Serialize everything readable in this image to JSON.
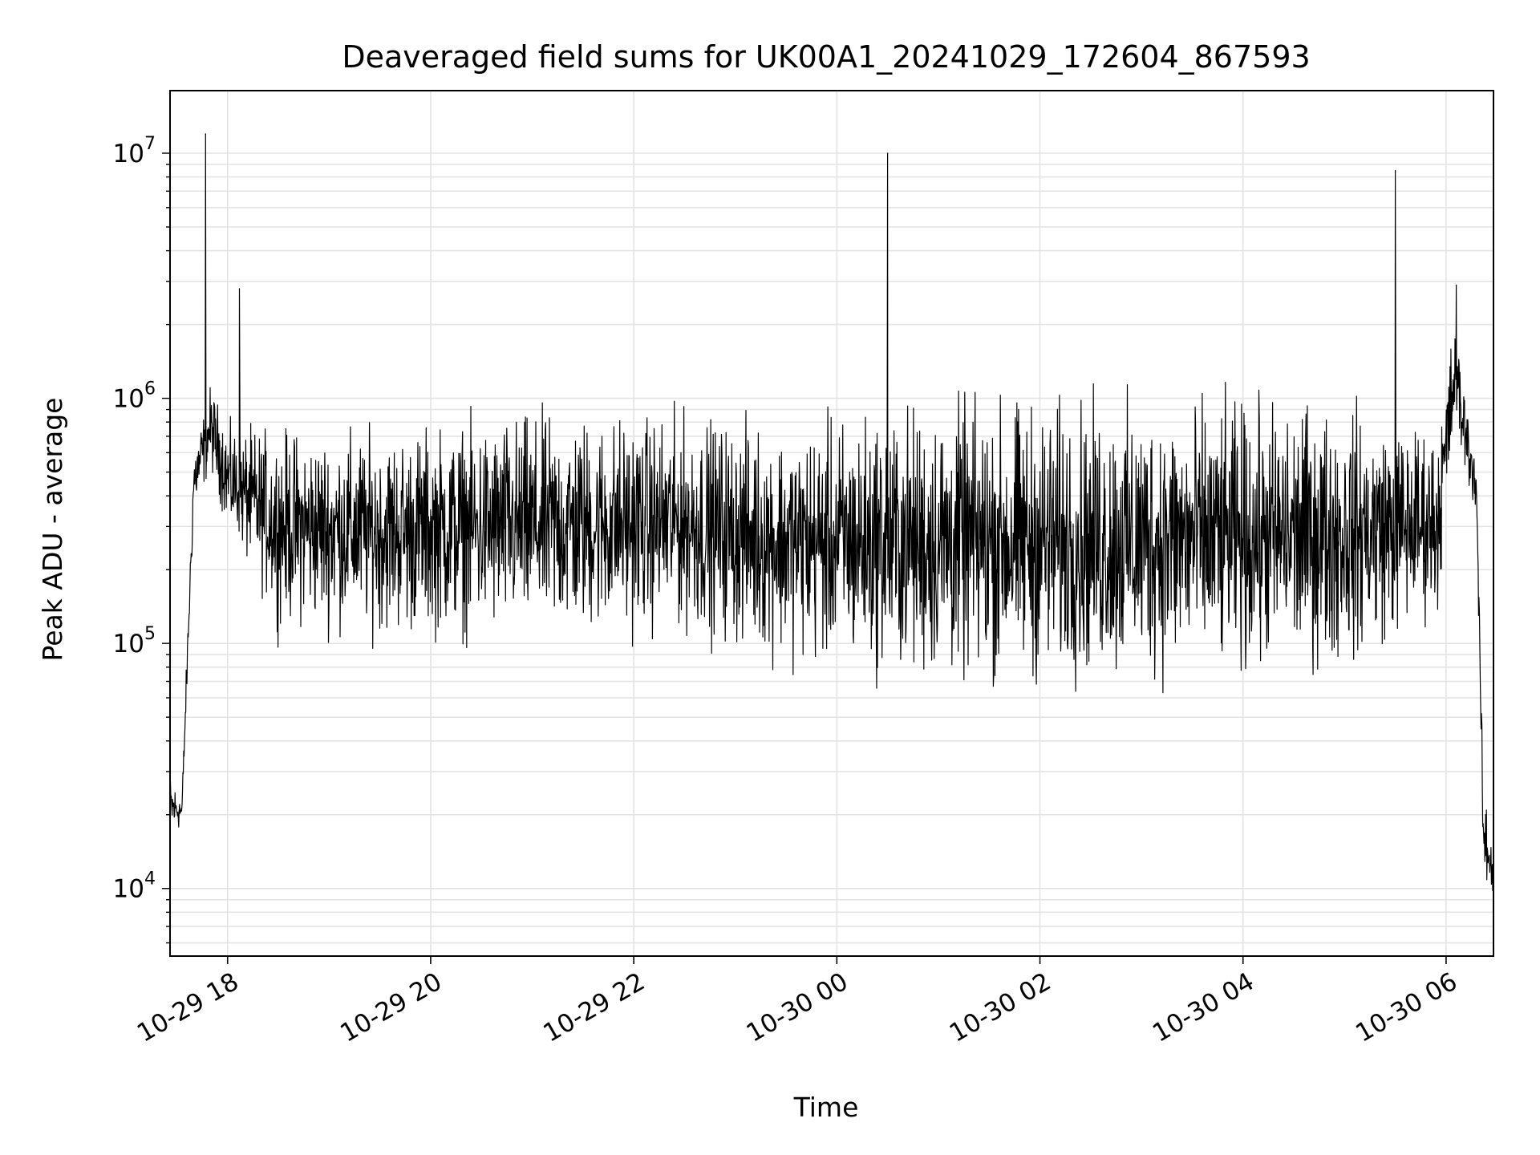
{
  "chart_data": {
    "type": "line",
    "title": "Deaveraged field sums for UK00A1_20241029_172604_867593",
    "xlabel": "Time",
    "ylabel": "Peak ADU - average",
    "yscale": "log",
    "ylim": [
      5300,
      18000000
    ],
    "xlim": [
      "2024-10-29 17:26",
      "2024-10-30 06:28"
    ],
    "grid": true,
    "legend": "none",
    "line_color": "#000000",
    "x_ticks": [
      {
        "label": "10-29 18",
        "time": "2024-10-29 18:00"
      },
      {
        "label": "10-29 20",
        "time": "2024-10-29 20:00"
      },
      {
        "label": "10-29 22",
        "time": "2024-10-29 22:00"
      },
      {
        "label": "10-30 00",
        "time": "2024-10-30 00:00"
      },
      {
        "label": "10-30 02",
        "time": "2024-10-30 02:00"
      },
      {
        "label": "10-30 04",
        "time": "2024-10-30 04:00"
      },
      {
        "label": "10-30 06",
        "time": "2024-10-30 06:00"
      }
    ],
    "y_ticks": [
      {
        "base": "10",
        "exp": "4",
        "value": 10000
      },
      {
        "base": "10",
        "exp": "5",
        "value": 100000
      },
      {
        "base": "10",
        "exp": "6",
        "value": 1000000
      },
      {
        "base": "10",
        "exp": "7",
        "value": 10000000
      }
    ],
    "envelope": {
      "description_points": [
        {
          "time": "2024-10-29 17:26",
          "low": 14000,
          "high": 33000
        },
        {
          "time": "2024-10-29 17:33",
          "low": 17000,
          "high": 25000
        },
        {
          "time": "2024-10-29 17:40",
          "low": 300000,
          "high": 700000
        },
        {
          "time": "2024-10-29 17:50",
          "low": 450000,
          "high": 1300000
        },
        {
          "time": "2024-10-29 18:00",
          "low": 250000,
          "high": 900000
        },
        {
          "time": "2024-10-29 18:30",
          "low": 90000,
          "high": 1000000
        },
        {
          "time": "2024-10-29 19:30",
          "low": 80000,
          "high": 1000000
        },
        {
          "time": "2024-10-29 21:00",
          "low": 75000,
          "high": 1200000
        },
        {
          "time": "2024-10-29 22:30",
          "low": 80000,
          "high": 1200000
        },
        {
          "time": "2024-10-29 23:30",
          "low": 60000,
          "high": 1100000
        },
        {
          "time": "2024-10-30 01:00",
          "low": 45000,
          "high": 1500000
        },
        {
          "time": "2024-10-30 03:00",
          "low": 45000,
          "high": 1500000
        },
        {
          "time": "2024-10-30 05:00",
          "low": 55000,
          "high": 1400000
        },
        {
          "time": "2024-10-30 05:55",
          "low": 100000,
          "high": 1000000
        },
        {
          "time": "2024-10-30 06:05",
          "low": 600000,
          "high": 2500000
        },
        {
          "time": "2024-10-30 06:18",
          "low": 300000,
          "high": 600000
        },
        {
          "time": "2024-10-30 06:22",
          "low": 10000,
          "high": 26000
        },
        {
          "time": "2024-10-30 06:28",
          "low": 7500,
          "high": 18000
        }
      ]
    },
    "spikes": [
      {
        "time": "2024-10-29 17:47",
        "value": 12000000
      },
      {
        "time": "2024-10-29 18:07",
        "value": 2800000
      },
      {
        "time": "2024-10-30 00:30",
        "value": 10000000
      },
      {
        "time": "2024-10-30 05:30",
        "value": 8500000
      },
      {
        "time": "2024-10-30 06:06",
        "value": 2900000
      }
    ]
  }
}
